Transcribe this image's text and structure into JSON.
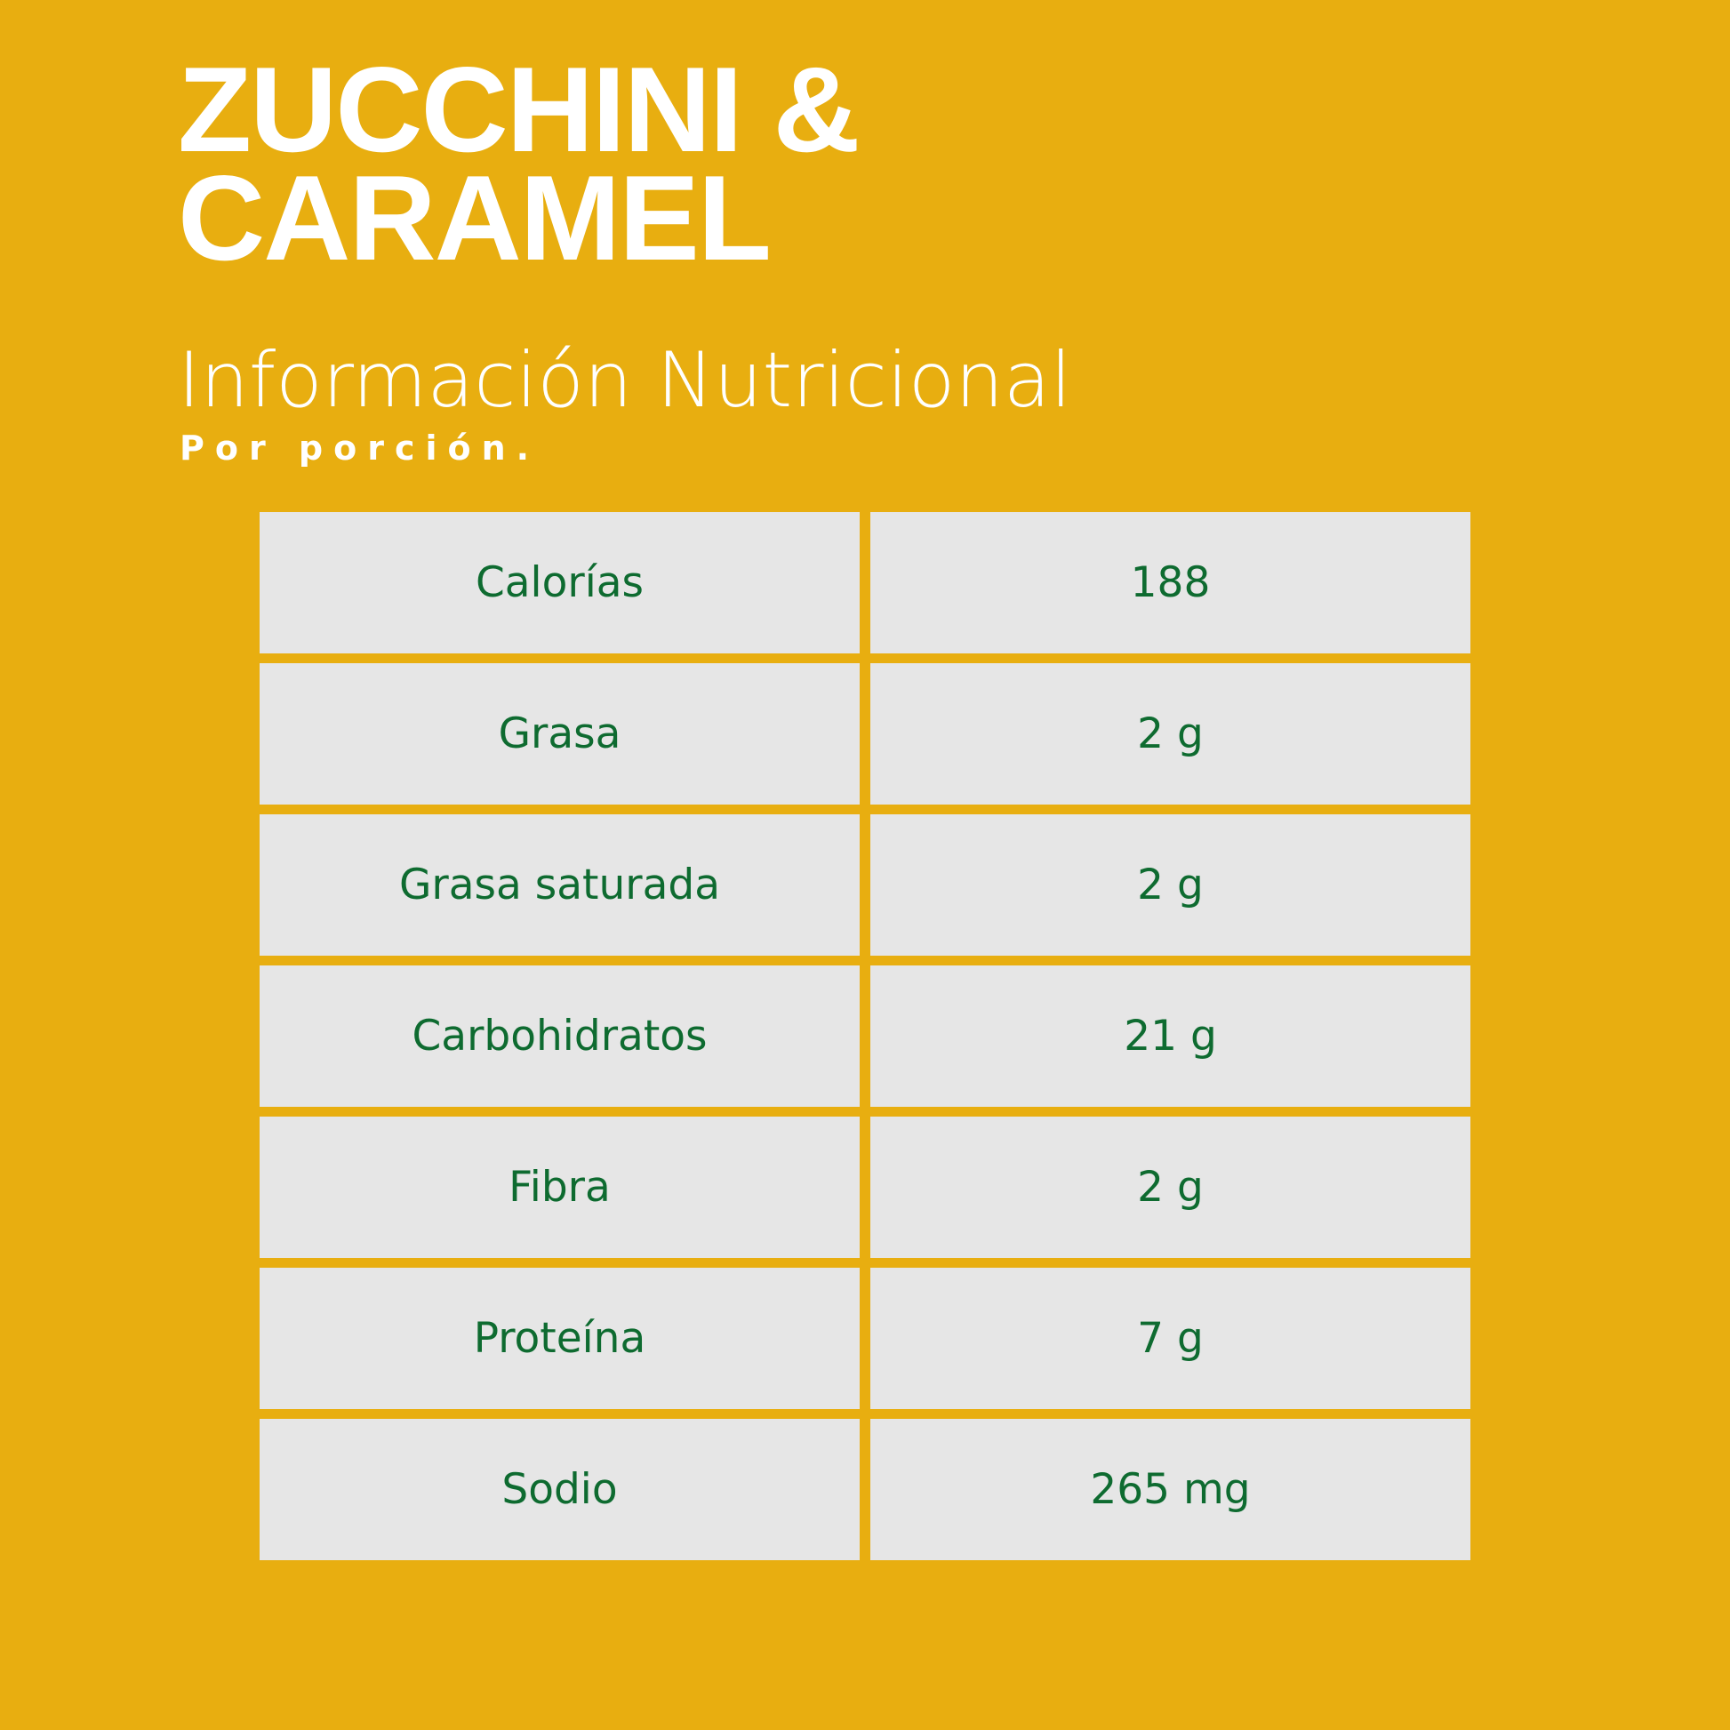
{
  "title": {
    "line1": "ZUCCHINI &",
    "line2": "CARAMEL"
  },
  "subtitle": "Información Nutricional",
  "serving": "Por porción.",
  "colors": {
    "background": "#E8AE10",
    "cell": "#E6E6E6",
    "text": "#0E6B30",
    "title": "#FFFFFF"
  },
  "nutrition": [
    {
      "label": "Calorías",
      "value": "188"
    },
    {
      "label": "Grasa",
      "value": "2 g"
    },
    {
      "label": "Grasa saturada",
      "value": "2 g"
    },
    {
      "label": "Carbohidratos",
      "value": "21 g"
    },
    {
      "label": "Fibra",
      "value": "2 g"
    },
    {
      "label": "Proteína",
      "value": "7 g"
    },
    {
      "label": "Sodio",
      "value": "265 mg"
    }
  ]
}
